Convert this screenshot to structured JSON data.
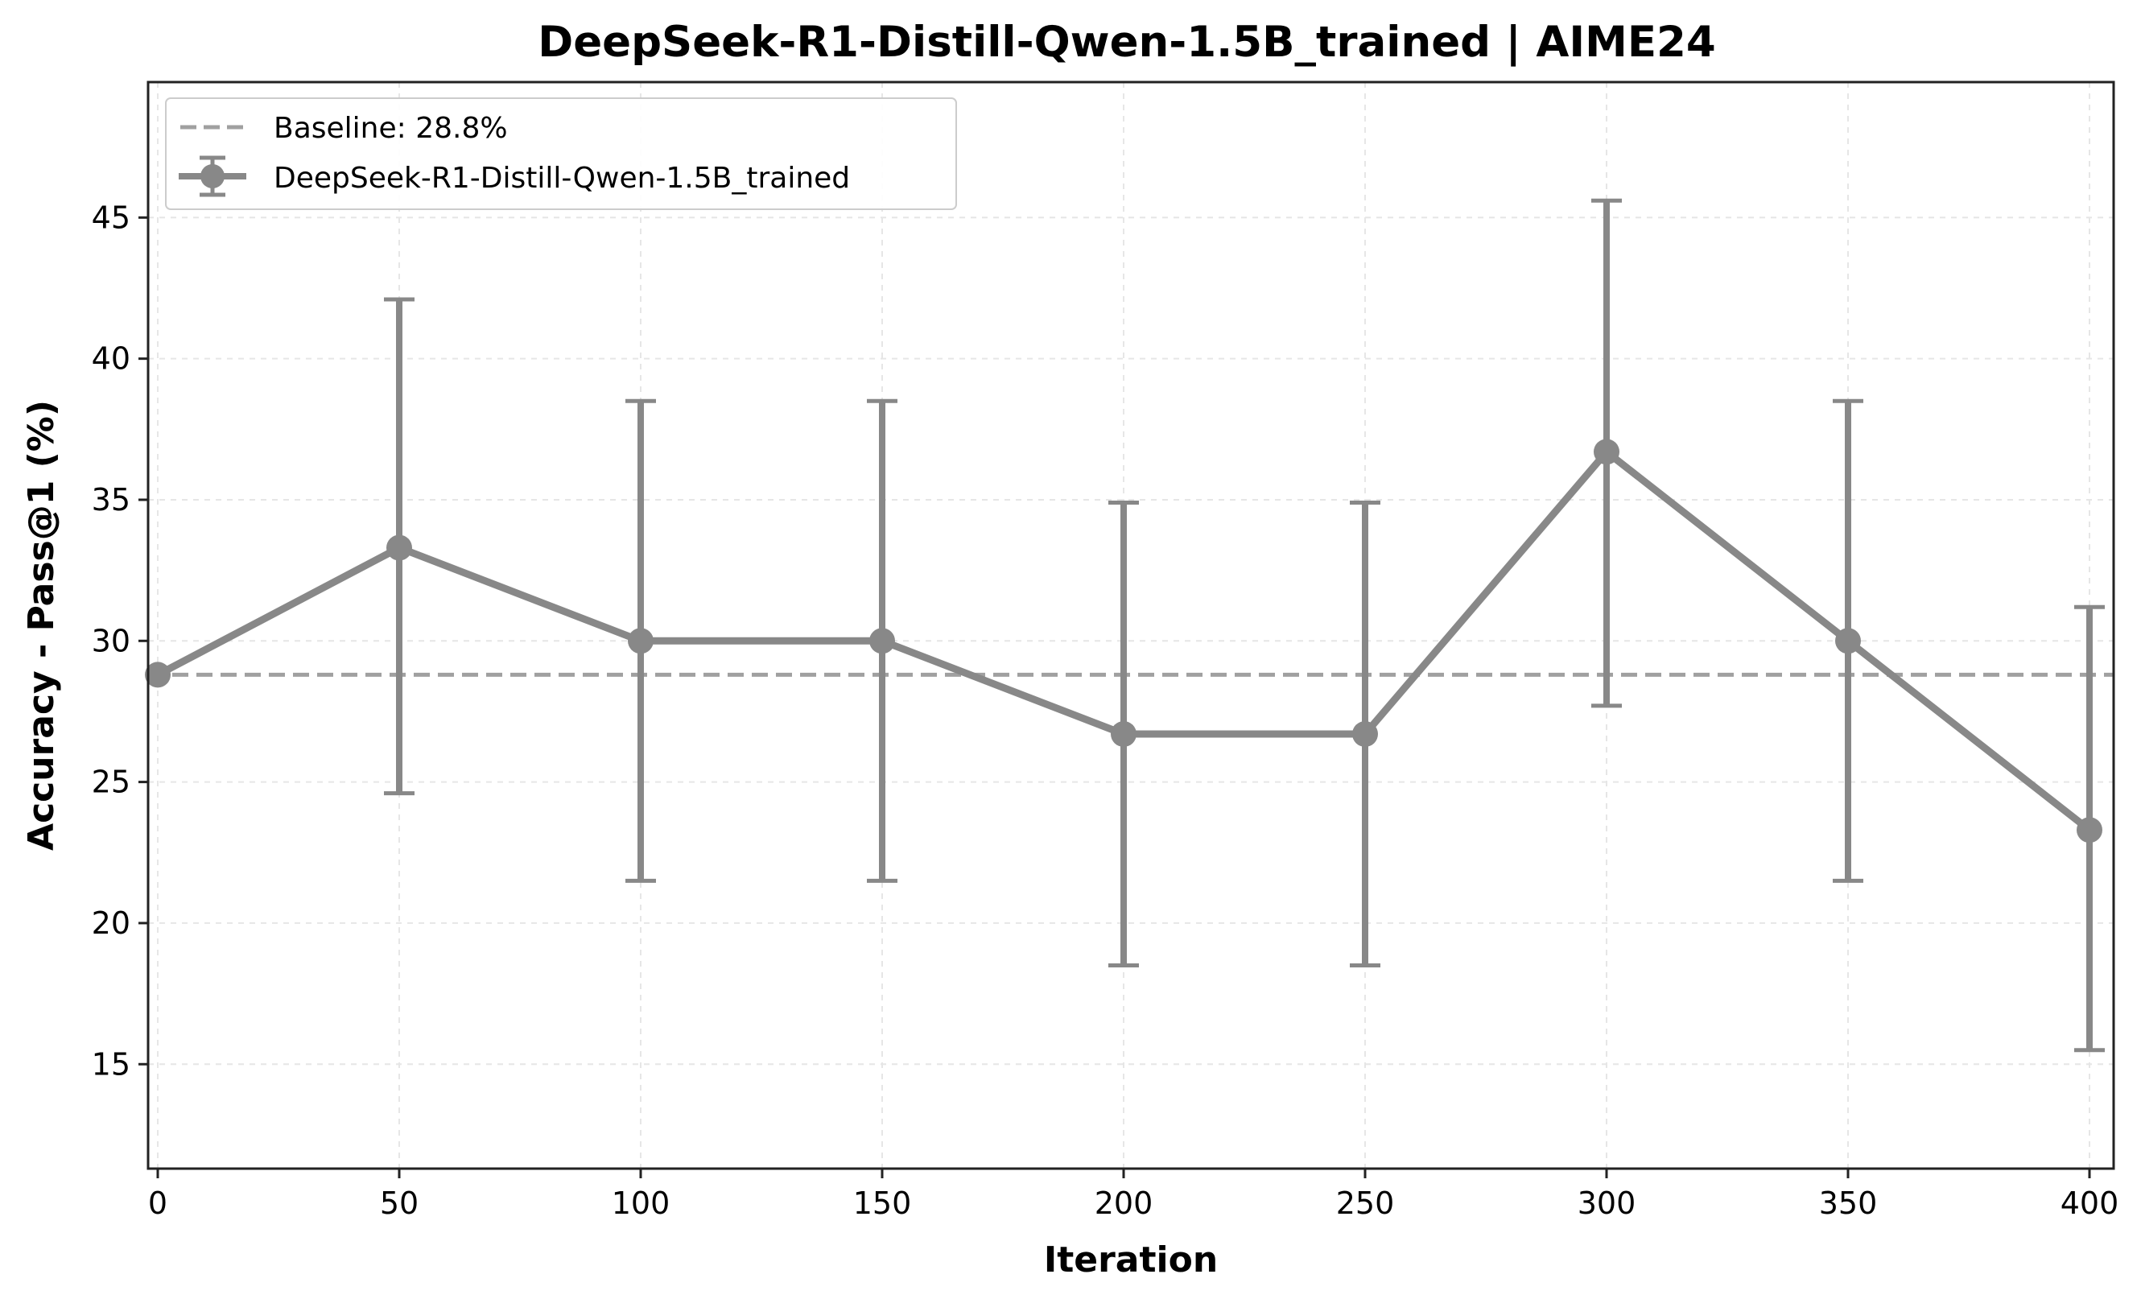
{
  "chart_data": {
    "type": "line",
    "title": "DeepSeek-R1-Distill-Qwen-1.5B_trained | AIME24",
    "xlabel": "Iteration",
    "ylabel": "Accuracy - Pass@1 (%)",
    "xlim": [
      -2,
      405
    ],
    "ylim": [
      11.3,
      49.8
    ],
    "xticks": [
      "0",
      "50",
      "100",
      "150",
      "200",
      "250",
      "300",
      "350",
      "400"
    ],
    "yticks": [
      "15",
      "20",
      "25",
      "30",
      "35",
      "40",
      "45"
    ],
    "xtick_values": [
      0,
      50,
      100,
      150,
      200,
      250,
      300,
      350,
      400
    ],
    "ytick_values": [
      15,
      20,
      25,
      30,
      35,
      40,
      45
    ],
    "grid": true,
    "legend_position": "upper-left",
    "baseline": {
      "label": "Baseline: 28.8%",
      "value": 28.8,
      "color": "#a0a0a0"
    },
    "series": [
      {
        "name": "DeepSeek-R1-Distill-Qwen-1.5B_trained",
        "color": "#888888",
        "x": [
          0,
          50,
          100,
          150,
          200,
          250,
          300,
          350,
          400
        ],
        "y": [
          28.8,
          33.3,
          30.0,
          30.0,
          26.7,
          26.7,
          36.7,
          30.0,
          23.3
        ],
        "err_low": [
          null,
          24.6,
          21.5,
          21.5,
          18.5,
          18.5,
          27.7,
          21.5,
          15.5
        ],
        "err_high": [
          null,
          42.1,
          38.5,
          38.5,
          34.9,
          34.9,
          45.6,
          38.5,
          31.2
        ]
      }
    ]
  }
}
